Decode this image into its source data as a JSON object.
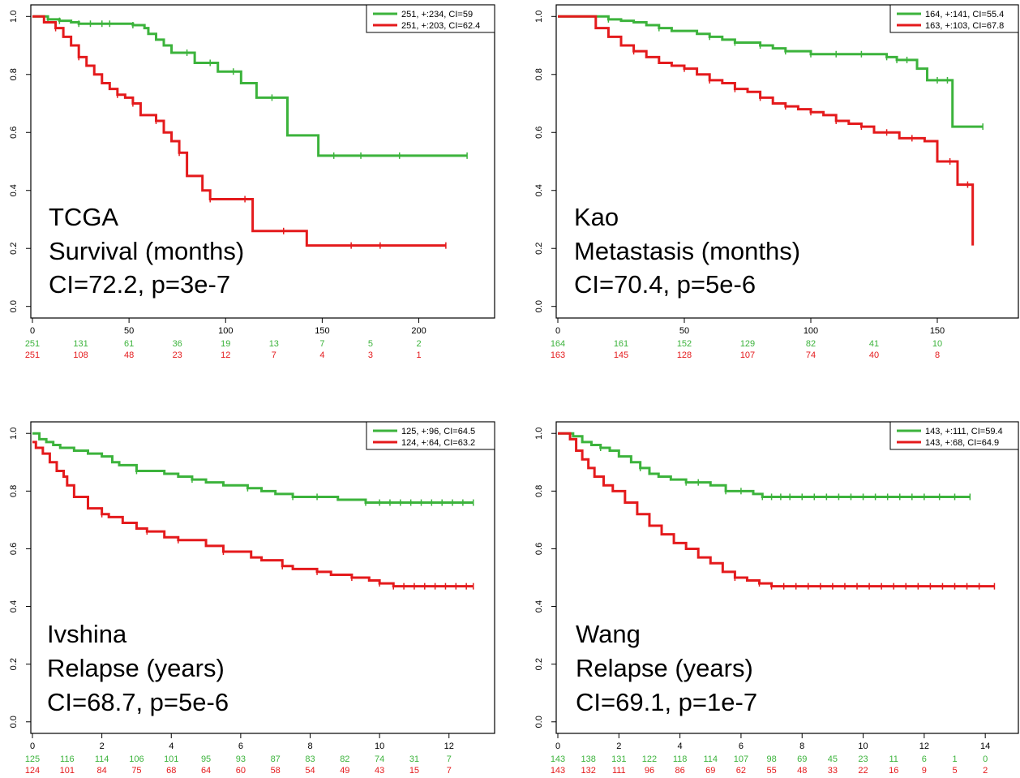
{
  "colors": {
    "group1": "#3cb33c",
    "group2": "#e41a1c",
    "axis": "#000000"
  },
  "chart_data": [
    {
      "type": "line",
      "subtype": "kaplan-meier",
      "annotation_lines": [
        "TCGA",
        "Survival (months)",
        "CI=72.2, p=3e-7"
      ],
      "legend": [
        "251, +:234, CI=59",
        "251, +:203, CI=62.4"
      ],
      "legend_position": "top-right",
      "xlim": [
        0,
        230
      ],
      "ylim": [
        0,
        1
      ],
      "x_ticks": [
        0,
        50,
        100,
        150,
        200
      ],
      "x_tick_labels": [
        "0",
        "50",
        "100",
        "150",
        "200"
      ],
      "y_ticks": [
        0,
        0.2,
        0.4,
        0.6,
        0.8,
        1.0
      ],
      "y_tick_labels": [
        "0.0",
        "0.2",
        "0.4",
        "0.6",
        "0.8",
        "1.0"
      ],
      "risk_times": [
        0,
        25,
        50,
        75,
        100,
        125,
        150,
        175,
        200
      ],
      "risk_table": [
        [
          "251",
          "131",
          "61",
          "36",
          "19",
          "13",
          "7",
          "5",
          "2"
        ],
        [
          "251",
          "108",
          "48",
          "23",
          "12",
          "7",
          "4",
          "3",
          "1"
        ]
      ],
      "series": [
        {
          "x": [
            0,
            8,
            14,
            20,
            24,
            30,
            36,
            40,
            52,
            58,
            60,
            64,
            68,
            72,
            80,
            84,
            92,
            96,
            102,
            104,
            108,
            116,
            124,
            130,
            132,
            148,
            156,
            170,
            190,
            225
          ],
          "y": [
            1,
            0.99,
            0.985,
            0.98,
            0.975,
            0.975,
            0.975,
            0.975,
            0.97,
            0.96,
            0.94,
            0.92,
            0.9,
            0.875,
            0.875,
            0.84,
            0.84,
            0.81,
            0.81,
            0.81,
            0.77,
            0.72,
            0.72,
            0.72,
            0.59,
            0.52,
            0.52,
            0.52,
            0.52,
            0.52
          ],
          "censor": [
            8,
            14,
            24,
            30,
            36,
            40,
            52,
            80,
            92,
            104,
            124,
            156,
            170,
            190,
            225
          ]
        },
        {
          "x": [
            0,
            6,
            12,
            16,
            20,
            24,
            28,
            32,
            36,
            40,
            44,
            48,
            52,
            56,
            60,
            64,
            68,
            72,
            76,
            80,
            84,
            88,
            92,
            96,
            100,
            104,
            110,
            114,
            118,
            126,
            130,
            142,
            165,
            180,
            214
          ],
          "y": [
            1,
            0.98,
            0.96,
            0.93,
            0.9,
            0.86,
            0.83,
            0.8,
            0.77,
            0.75,
            0.73,
            0.72,
            0.7,
            0.66,
            0.66,
            0.64,
            0.6,
            0.57,
            0.53,
            0.45,
            0.45,
            0.4,
            0.37,
            0.37,
            0.37,
            0.37,
            0.37,
            0.26,
            0.26,
            0.26,
            0.26,
            0.21,
            0.21,
            0.21,
            0.21
          ],
          "censor": [
            12,
            24,
            44,
            52,
            64,
            76,
            92,
            110,
            130,
            165,
            180,
            214
          ]
        }
      ]
    },
    {
      "type": "line",
      "subtype": "kaplan-meier",
      "annotation_lines": [
        "Kao",
        "Metastasis (months)",
        "CI=70.4, p=5e-6"
      ],
      "legend": [
        "164, +:141, CI=55.4",
        "163, +:103, CI=67.8"
      ],
      "legend_position": "top-right",
      "xlim": [
        0,
        175
      ],
      "ylim": [
        0,
        1
      ],
      "x_ticks": [
        0,
        50,
        100,
        150
      ],
      "x_tick_labels": [
        "0",
        "50",
        "100",
        "150"
      ],
      "y_ticks": [
        0,
        0.2,
        0.4,
        0.6,
        0.8,
        1.0
      ],
      "y_tick_labels": [
        "0.0",
        "0.2",
        "0.4",
        "0.6",
        "0.8",
        "1.0"
      ],
      "risk_times": [
        0,
        25,
        50,
        75,
        100,
        125,
        150
      ],
      "risk_table": [
        [
          "164",
          "161",
          "152",
          "129",
          "82",
          "41",
          "10"
        ],
        [
          "163",
          "145",
          "128",
          "107",
          "74",
          "40",
          "8"
        ]
      ],
      "series": [
        {
          "x": [
            0,
            10,
            20,
            25,
            30,
            35,
            40,
            45,
            50,
            55,
            60,
            65,
            70,
            75,
            80,
            85,
            90,
            95,
            100,
            110,
            120,
            130,
            134,
            138,
            142,
            146,
            150,
            154,
            156,
            168
          ],
          "y": [
            1,
            1,
            0.99,
            0.985,
            0.98,
            0.97,
            0.96,
            0.95,
            0.95,
            0.94,
            0.93,
            0.92,
            0.91,
            0.91,
            0.9,
            0.89,
            0.88,
            0.88,
            0.87,
            0.87,
            0.87,
            0.86,
            0.85,
            0.85,
            0.82,
            0.78,
            0.78,
            0.78,
            0.62,
            0.62
          ],
          "censor": [
            20,
            40,
            60,
            70,
            80,
            90,
            100,
            110,
            120,
            130,
            134,
            138,
            150,
            154,
            168
          ]
        },
        {
          "x": [
            0,
            5,
            10,
            15,
            20,
            25,
            30,
            35,
            40,
            45,
            50,
            55,
            60,
            65,
            70,
            75,
            80,
            85,
            90,
            95,
            100,
            105,
            110,
            115,
            120,
            125,
            130,
            135,
            140,
            145,
            150,
            155,
            158,
            162,
            164
          ],
          "y": [
            1,
            1,
            1,
            0.96,
            0.93,
            0.9,
            0.88,
            0.86,
            0.84,
            0.83,
            0.82,
            0.8,
            0.78,
            0.77,
            0.75,
            0.74,
            0.72,
            0.7,
            0.69,
            0.68,
            0.67,
            0.66,
            0.64,
            0.63,
            0.62,
            0.6,
            0.6,
            0.58,
            0.58,
            0.57,
            0.5,
            0.5,
            0.42,
            0.42,
            0.21
          ],
          "censor": [
            30,
            50,
            60,
            70,
            80,
            90,
            100,
            110,
            120,
            130,
            140,
            155,
            162
          ]
        }
      ]
    },
    {
      "type": "line",
      "subtype": "kaplan-meier",
      "annotation_lines": [
        "Ivshina",
        "Relapse (years)",
        "CI=68.7, p=5e-6"
      ],
      "legend": [
        "125, +:96, CI=64.5",
        "124, +:64, CI=63.2"
      ],
      "legend_position": "top-right",
      "xlim": [
        0,
        12.8
      ],
      "ylim": [
        0,
        1
      ],
      "x_ticks": [
        0,
        2,
        4,
        6,
        8,
        10,
        12
      ],
      "x_tick_labels": [
        "0",
        "2",
        "4",
        "6",
        "8",
        "10",
        "12"
      ],
      "y_ticks": [
        0,
        0.2,
        0.4,
        0.6,
        0.8,
        1.0
      ],
      "y_tick_labels": [
        "0.0",
        "0.2",
        "0.4",
        "0.6",
        "0.8",
        "1.0"
      ],
      "risk_times": [
        0,
        1,
        2,
        3,
        4,
        5,
        6,
        7,
        8,
        9,
        10,
        11,
        12
      ],
      "risk_table": [
        [
          "125",
          "116",
          "114",
          "106",
          "101",
          "95",
          "93",
          "87",
          "83",
          "82",
          "74",
          "31",
          "7"
        ],
        [
          "124",
          "101",
          "84",
          "75",
          "68",
          "64",
          "60",
          "58",
          "54",
          "49",
          "43",
          "15",
          "7"
        ]
      ],
      "series": [
        {
          "x": [
            0,
            0.2,
            0.4,
            0.6,
            0.8,
            1.2,
            1.6,
            2.0,
            2.3,
            2.5,
            3.0,
            3.5,
            3.8,
            4.2,
            4.6,
            5.0,
            5.5,
            6.2,
            6.6,
            7.0,
            7.5,
            8.2,
            8.8,
            9.6,
            10.0,
            10.5,
            11.0,
            11.5,
            12.0,
            12.7
          ],
          "y": [
            1,
            0.98,
            0.97,
            0.96,
            0.95,
            0.94,
            0.93,
            0.92,
            0.9,
            0.89,
            0.87,
            0.87,
            0.86,
            0.85,
            0.84,
            0.83,
            0.82,
            0.81,
            0.8,
            0.79,
            0.78,
            0.78,
            0.77,
            0.76,
            0.76,
            0.76,
            0.76,
            0.76,
            0.76,
            0.76
          ],
          "censor": [
            3.0,
            4.6,
            6.2,
            7.5,
            8.2,
            9.6,
            10.0,
            10.3,
            10.6,
            10.9,
            11.2,
            11.5,
            11.8,
            12.1,
            12.4,
            12.7
          ]
        },
        {
          "x": [
            0,
            0.1,
            0.3,
            0.5,
            0.7,
            0.9,
            1.0,
            1.2,
            1.4,
            1.6,
            2.0,
            2.2,
            2.6,
            3.0,
            3.3,
            3.8,
            4.2,
            5.0,
            5.5,
            6.3,
            6.6,
            7.2,
            7.5,
            8.2,
            8.6,
            9.2,
            9.7,
            10.0,
            10.4,
            11.0,
            12.7
          ],
          "y": [
            0.97,
            0.95,
            0.93,
            0.9,
            0.87,
            0.85,
            0.82,
            0.78,
            0.78,
            0.74,
            0.72,
            0.71,
            0.69,
            0.67,
            0.66,
            0.64,
            0.63,
            0.61,
            0.59,
            0.57,
            0.56,
            0.54,
            0.53,
            0.52,
            0.51,
            0.5,
            0.49,
            0.48,
            0.47,
            0.47,
            0.47
          ],
          "censor": [
            2.0,
            3.3,
            4.2,
            5.5,
            7.2,
            8.2,
            9.2,
            10.0,
            10.4,
            10.7,
            11.0,
            11.3,
            11.6,
            11.9,
            12.2,
            12.5,
            12.7
          ]
        }
      ]
    },
    {
      "type": "line",
      "subtype": "kaplan-meier",
      "annotation_lines": [
        "Wang",
        "Relapse (years)",
        "CI=69.1, p=1e-7"
      ],
      "legend": [
        "143, +:111, CI=59.4",
        "143, +:68, CI=64.9"
      ],
      "legend_position": "top-right",
      "xlim": [
        0,
        14.5
      ],
      "ylim": [
        0,
        1
      ],
      "x_ticks": [
        0,
        2,
        4,
        6,
        8,
        10,
        12,
        14
      ],
      "x_tick_labels": [
        "0",
        "2",
        "4",
        "6",
        "8",
        "10",
        "12",
        "14"
      ],
      "y_ticks": [
        0,
        0.2,
        0.4,
        0.6,
        0.8,
        1.0
      ],
      "y_tick_labels": [
        "0.0",
        "0.2",
        "0.4",
        "0.6",
        "0.8",
        "1.0"
      ],
      "risk_times": [
        0,
        1,
        2,
        3,
        4,
        5,
        6,
        7,
        8,
        9,
        10,
        11,
        12,
        13,
        14
      ],
      "risk_table": [
        [
          "143",
          "138",
          "131",
          "122",
          "118",
          "114",
          "107",
          "98",
          "69",
          "45",
          "23",
          "11",
          "6",
          "1",
          "0"
        ],
        [
          "143",
          "132",
          "111",
          "96",
          "86",
          "69",
          "62",
          "55",
          "48",
          "33",
          "22",
          "16",
          "9",
          "5",
          "2"
        ]
      ],
      "series": [
        {
          "x": [
            0,
            0.5,
            0.8,
            1.1,
            1.4,
            1.7,
            2.0,
            2.4,
            2.7,
            3.0,
            3.3,
            3.7,
            4.2,
            4.6,
            5.0,
            5.5,
            6.0,
            6.4,
            6.7,
            7.5,
            8.0,
            9.0,
            10.0,
            11.0,
            12.0,
            13.5
          ],
          "y": [
            1,
            0.99,
            0.97,
            0.96,
            0.95,
            0.94,
            0.92,
            0.9,
            0.88,
            0.86,
            0.85,
            0.84,
            0.83,
            0.83,
            0.82,
            0.8,
            0.8,
            0.79,
            0.78,
            0.78,
            0.78,
            0.78,
            0.78,
            0.78,
            0.78,
            0.78
          ],
          "censor": [
            1.4,
            2.7,
            4.2,
            4.6,
            5.5,
            6.0,
            6.7,
            7.0,
            7.3,
            7.6,
            8.0,
            8.4,
            8.8,
            9.2,
            9.6,
            10.0,
            10.4,
            10.8,
            11.2,
            11.6,
            12.0,
            12.5,
            13.0,
            13.5
          ]
        },
        {
          "x": [
            0,
            0.4,
            0.6,
            0.8,
            1.0,
            1.2,
            1.5,
            1.8,
            2.2,
            2.6,
            3.0,
            3.4,
            3.8,
            4.2,
            4.6,
            5.0,
            5.4,
            5.8,
            6.2,
            6.6,
            7.0,
            8.0,
            9.0,
            10.0,
            11.0,
            12.0,
            13.0,
            14.3
          ],
          "y": [
            1,
            0.98,
            0.94,
            0.91,
            0.88,
            0.85,
            0.82,
            0.8,
            0.76,
            0.72,
            0.68,
            0.65,
            0.62,
            0.6,
            0.57,
            0.55,
            0.52,
            0.5,
            0.49,
            0.48,
            0.47,
            0.47,
            0.47,
            0.47,
            0.47,
            0.47,
            0.47,
            0.47
          ],
          "censor": [
            5.8,
            6.6,
            7.0,
            7.4,
            7.8,
            8.2,
            8.6,
            9.0,
            9.4,
            9.8,
            10.2,
            10.6,
            11.0,
            11.4,
            11.8,
            12.2,
            12.6,
            13.0,
            13.4,
            13.8,
            14.3
          ]
        }
      ]
    }
  ]
}
